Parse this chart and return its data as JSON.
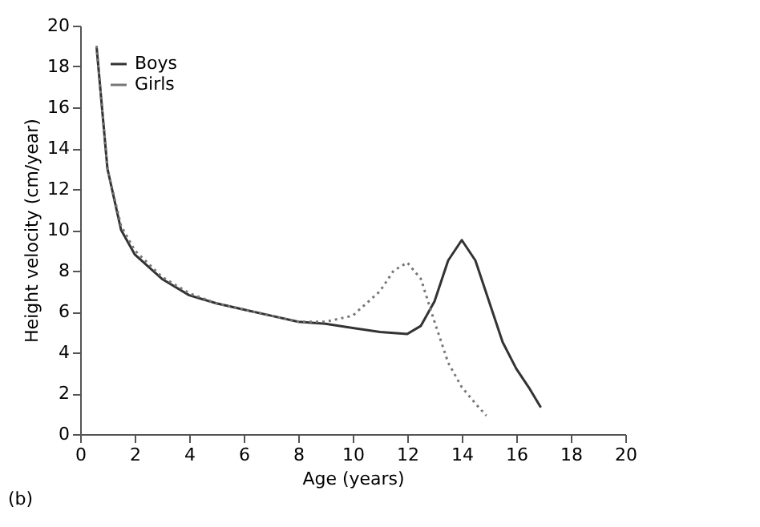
{
  "chart_data": {
    "type": "line",
    "xlabel": "Age (years)",
    "ylabel": "Height velocity (cm/year)",
    "annotations": [
      "(b)"
    ],
    "xlim": [
      0,
      20
    ],
    "xticks": [
      0,
      2,
      4,
      6,
      8,
      10,
      12,
      14,
      16,
      18,
      20
    ],
    "ylim": [
      0,
      20
    ],
    "yticks": [
      0,
      2,
      4,
      6,
      8,
      10,
      12,
      14,
      16,
      18,
      20
    ],
    "grid": false,
    "legend": "top left",
    "marker": "none",
    "series": [
      {
        "name": "Boys",
        "color": "#333333",
        "line_style": "solid",
        "x": [
          0.6,
          0.8,
          1,
          1.5,
          2,
          3,
          4,
          5,
          6,
          7,
          8,
          9,
          10,
          11,
          12,
          12.5,
          13,
          13.5,
          14,
          14.5,
          15,
          15.5,
          16,
          16.5,
          16.9
        ],
        "values": [
          19,
          16,
          13,
          10,
          8.8,
          7.6,
          6.8,
          6.4,
          6.1,
          5.8,
          5.5,
          5.4,
          5.2,
          5.0,
          4.9,
          5.3,
          6.5,
          8.5,
          9.5,
          8.5,
          6.5,
          4.5,
          3.2,
          2.2,
          1.3
        ]
      },
      {
        "name": "Girls",
        "color": "#777777",
        "line_style": "dotted",
        "x": [
          0.6,
          0.8,
          1,
          1.5,
          2,
          3,
          4,
          5,
          6,
          7,
          8,
          9,
          10,
          11,
          11.5,
          12,
          12.5,
          13,
          13.5,
          14,
          14.5,
          14.9
        ],
        "values": [
          19,
          16,
          13,
          10.2,
          9,
          7.7,
          6.9,
          6.4,
          6.1,
          5.8,
          5.5,
          5.5,
          5.8,
          7,
          8,
          8.4,
          7.6,
          5.5,
          3.5,
          2.3,
          1.5,
          0.9
        ]
      }
    ]
  }
}
